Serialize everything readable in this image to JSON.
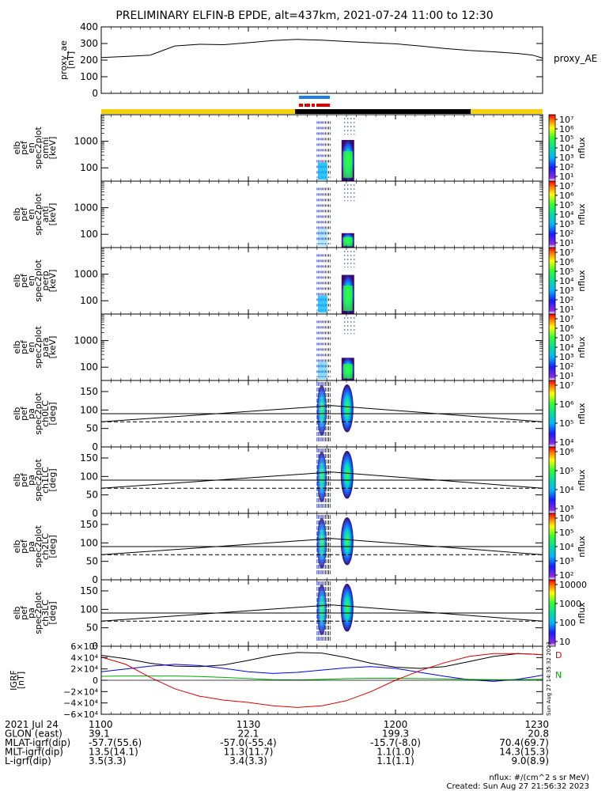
{
  "title": "PRELIMINARY ELFIN-B EPDE, alt=437km, 2021-07-24 11:00 to 12:30",
  "colors": {
    "sunlit": "#f5d10a",
    "eclipse": "#000000",
    "science_blue": "#1e7fe0",
    "science_red": "#e00000",
    "bx": "#0000dd",
    "by": "#00aa00",
    "bz": "#dd0000",
    "bmag": "#000000"
  },
  "chart_data": [
    {
      "type": "line",
      "panel": "proxy_ae",
      "ylabel": [
        "proxy_ae",
        "[nT]"
      ],
      "legend": "proxy_AE",
      "ylim": [
        0,
        400
      ],
      "yticks": [
        "400",
        "300",
        "200",
        "100",
        "0"
      ],
      "x": [
        1100,
        1105,
        1110,
        1115,
        1120,
        1125,
        1130,
        1135,
        1140,
        1145,
        1150,
        1155,
        1200,
        1205,
        1210,
        1215,
        1220,
        1225,
        1228,
        1230
      ],
      "values": [
        215,
        222,
        230,
        285,
        295,
        293,
        305,
        318,
        325,
        320,
        312,
        305,
        298,
        285,
        270,
        258,
        250,
        240,
        230,
        212
      ]
    },
    {
      "type": "heatmap",
      "panel": "omni",
      "ylabel": [
        "elb",
        "pef",
        "en",
        "spec2plot",
        "omni",
        "[keV]"
      ],
      "yticks": [
        "1000",
        "100"
      ],
      "colorbar": {
        "label": "nflux",
        "ticks": [
          "10⁷",
          "10⁶",
          "10⁵",
          "10⁴",
          "10³",
          "10²",
          "10¹"
        ]
      }
    },
    {
      "type": "heatmap",
      "panel": "anti",
      "ylabel": [
        "elb",
        "pef",
        "en",
        "spec2plot",
        "anti",
        "[keV]"
      ],
      "yticks": [
        "1000",
        "100"
      ],
      "colorbar": {
        "label": "nflux",
        "ticks": [
          "10⁷",
          "10⁶",
          "10⁵",
          "10⁴",
          "10³",
          "10²",
          "10¹"
        ]
      }
    },
    {
      "type": "heatmap",
      "panel": "perp",
      "ylabel": [
        "elb",
        "pef",
        "en",
        "spec2plot",
        "perp",
        "[keV]"
      ],
      "yticks": [
        "1000",
        "100"
      ],
      "colorbar": {
        "label": "nflux",
        "ticks": [
          "10⁷",
          "10⁶",
          "10⁵",
          "10⁴",
          "10³",
          "10²",
          "10¹"
        ]
      }
    },
    {
      "type": "heatmap",
      "panel": "para",
      "ylabel": [
        "elb",
        "pef",
        "en",
        "spec2plot",
        "para",
        "[keV]"
      ],
      "yticks": [
        "1000",
        "100"
      ],
      "colorbar": {
        "label": "nflux",
        "ticks": [
          "10⁷",
          "10⁶",
          "10⁵",
          "10⁴",
          "10³",
          "10²",
          "10¹"
        ]
      }
    },
    {
      "type": "heatmap",
      "panel": "ch0LC",
      "ylabel": [
        "elb",
        "pef",
        "pa",
        "spec2plot",
        "ch0LC",
        "[deg]"
      ],
      "yticks": [
        "150",
        "100",
        "50",
        "0"
      ],
      "colorbar": {
        "label": "nflux",
        "ticks": [
          "10⁷",
          "10⁶",
          "10⁵",
          "10⁴"
        ]
      }
    },
    {
      "type": "heatmap",
      "panel": "ch1LC",
      "ylabel": [
        "elb",
        "pef",
        "pa",
        "spec2plot",
        "ch1LC",
        "[deg]"
      ],
      "yticks": [
        "150",
        "100",
        "50",
        "0"
      ],
      "colorbar": {
        "label": "nflux",
        "ticks": [
          "10⁶",
          "10⁵",
          "10⁴",
          "10³"
        ]
      }
    },
    {
      "type": "heatmap",
      "panel": "ch2LC",
      "ylabel": [
        "elb",
        "pef",
        "pa",
        "spec2plot",
        "ch2LC",
        "[deg]"
      ],
      "yticks": [
        "150",
        "100",
        "50",
        "0"
      ],
      "colorbar": {
        "label": "nflux",
        "ticks": [
          "10⁶",
          "10⁵",
          "10⁴",
          "10³",
          "10²"
        ]
      }
    },
    {
      "type": "heatmap",
      "panel": "ch3LC",
      "ylabel": [
        "elb",
        "pef",
        "pa",
        "spec2plot",
        "ch3LC",
        "[deg]"
      ],
      "yticks": [
        "150",
        "100",
        "50",
        "0"
      ],
      "colorbar": {
        "label": "nflux",
        "ticks": [
          "10000",
          "1000",
          "100",
          "10"
        ]
      }
    },
    {
      "type": "line",
      "panel": "igrf",
      "ylabel": [
        "IGRF",
        "[nT]"
      ],
      "ylim": [
        -60000,
        60000
      ],
      "yticks": [
        "6×10⁴",
        "4×10⁴",
        "2×10⁴",
        "0",
        "−2×10⁴",
        "−4×10⁴",
        "−6×10⁴"
      ],
      "x": [
        1100,
        1105,
        1110,
        1115,
        1120,
        1125,
        1130,
        1135,
        1140,
        1145,
        1150,
        1155,
        1200,
        1205,
        1210,
        1215,
        1220,
        1225,
        1228,
        1230
      ],
      "series": [
        {
          "values": [
            44000,
            38000,
            30000,
            25000,
            24000,
            27000,
            35000,
            44000,
            49000,
            48000,
            40000,
            30000,
            23000,
            21000,
            24000,
            33000,
            42000,
            47000,
            46000,
            45000
          ]
        },
        {
          "values": [
            15000,
            20000,
            25000,
            28000,
            26000,
            21000,
            15000,
            12000,
            14000,
            18000,
            22000,
            24000,
            21000,
            14000,
            7000,
            1000,
            -2000,
            2000,
            6000,
            9000
          ]
        },
        {
          "values": [
            7000,
            7500,
            7500,
            7500,
            6500,
            5000,
            3000,
            1000,
            500,
            1500,
            3000,
            3500,
            3500,
            3000,
            2500,
            1500,
            1000,
            1000,
            1500,
            2000
          ]
        },
        {
          "values": [
            41000,
            28000,
            5000,
            -15000,
            -28000,
            -35000,
            -39000,
            -45000,
            -48000,
            -45000,
            -36000,
            -20000,
            0,
            17000,
            31000,
            42000,
            47000,
            47000,
            46000,
            45000
          ]
        }
      ],
      "side_marks": [
        "D",
        "N"
      ]
    }
  ],
  "xaxis": {
    "ticks": [
      "1100",
      "1130",
      "1200",
      "1230"
    ],
    "range": [
      1100,
      1230
    ]
  },
  "footer": {
    "rows": [
      {
        "label": "2021 Jul 24",
        "values": [
          "1100",
          "1130",
          "1200",
          "1230"
        ]
      },
      {
        "label": "GLON (east)",
        "values": [
          "39.1",
          "22.1",
          "199.3",
          "20.8"
        ]
      },
      {
        "label": "MLAT-igrf(dip)",
        "values": [
          "-57.7(55.6)",
          "-57.0(-55.4)",
          "-15.7(-8.0)",
          "70.4(69.7)"
        ]
      },
      {
        "label": "MLT-igrf(dip)",
        "values": [
          "13.5(14.1)",
          "11.3(11.7)",
          "1.1(1.0)",
          "14.3(15.3)"
        ]
      },
      {
        "label": "L-igrf(dip)",
        "values": [
          "3.5(3.3)",
          "3.4(3.3)",
          "1.1(1.1)",
          "9.0(8.9)"
        ]
      }
    ],
    "units": "nflux: #/(cm^2 s sr MeV)",
    "created": "Created: Sun Aug 27 21:56:32 2023",
    "side_stamp": "Sun Aug 27 14:35:32 2023"
  }
}
